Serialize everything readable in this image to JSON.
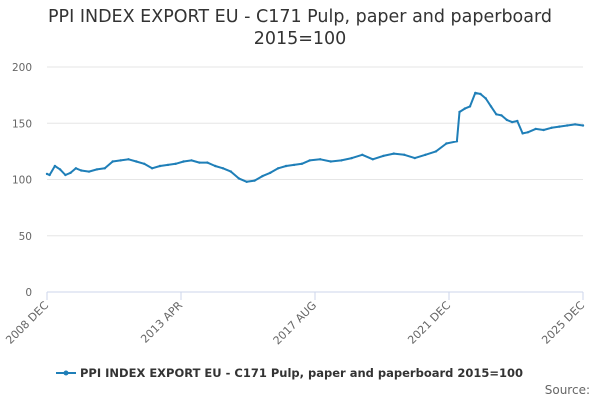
{
  "chart_data": {
    "type": "line",
    "title": "PPI INDEX EXPORT EU - C171 Pulp, paper and paperboard",
    "subtitle": "2015=100",
    "xlabel": "",
    "ylabel": "",
    "ylim": [
      0,
      200
    ],
    "yticks": [
      0,
      50,
      100,
      150,
      200
    ],
    "xticks": [
      "2008 DEC",
      "2013 APR",
      "2017 AUG",
      "2021 DEC",
      "2025 DEC"
    ],
    "grid": true,
    "legend": "bottom",
    "colors": {
      "series": "#1f7fb8",
      "grid": "#e6e6e6",
      "axis": "#ccd6eb"
    },
    "series": [
      {
        "name": "PPI INDEX EXPORT EU - C171 Pulp, paper and paperboard 2015=100",
        "x": [
          "2008-12",
          "2009-01",
          "2009-03",
          "2009-05",
          "2009-07",
          "2009-09",
          "2009-11",
          "2010-01",
          "2010-04",
          "2010-07",
          "2010-10",
          "2011-01",
          "2011-04",
          "2011-07",
          "2011-10",
          "2012-01",
          "2012-04",
          "2012-07",
          "2012-10",
          "2013-01",
          "2013-04",
          "2013-07",
          "2013-10",
          "2014-01",
          "2014-04",
          "2014-07",
          "2014-10",
          "2015-01",
          "2015-04",
          "2015-07",
          "2015-10",
          "2016-01",
          "2016-04",
          "2016-07",
          "2016-10",
          "2017-01",
          "2017-04",
          "2017-08",
          "2017-12",
          "2018-04",
          "2018-08",
          "2018-12",
          "2019-04",
          "2019-08",
          "2019-12",
          "2020-04",
          "2020-08",
          "2020-12",
          "2021-04",
          "2021-08",
          "2021-12",
          "2022-01",
          "2022-03",
          "2022-05",
          "2022-07",
          "2022-09",
          "2022-11",
          "2023-01",
          "2023-03",
          "2023-05",
          "2023-07",
          "2023-09",
          "2023-11",
          "2024-01",
          "2024-03",
          "2024-06",
          "2024-09",
          "2024-12",
          "2025-03",
          "2025-06",
          "2025-09",
          "2025-12"
        ],
        "values": [
          105,
          104,
          112,
          109,
          104,
          106,
          110,
          108,
          107,
          109,
          110,
          116,
          117,
          118,
          116,
          114,
          110,
          112,
          113,
          114,
          116,
          117,
          115,
          115,
          112,
          110,
          107,
          101,
          98,
          99,
          103,
          106,
          110,
          112,
          113,
          114,
          117,
          118,
          116,
          117,
          119,
          122,
          118,
          121,
          123,
          122,
          119,
          122,
          125,
          132,
          134,
          160,
          163,
          165,
          177,
          176,
          172,
          165,
          158,
          157,
          153,
          151,
          152,
          141,
          142,
          145,
          144,
          146,
          147,
          148,
          149,
          148
        ]
      }
    ]
  },
  "legend": {
    "label": "PPI INDEX EXPORT EU - C171 Pulp, paper and paperboard 2015=100"
  },
  "footer": {
    "source_label": "Source:"
  }
}
